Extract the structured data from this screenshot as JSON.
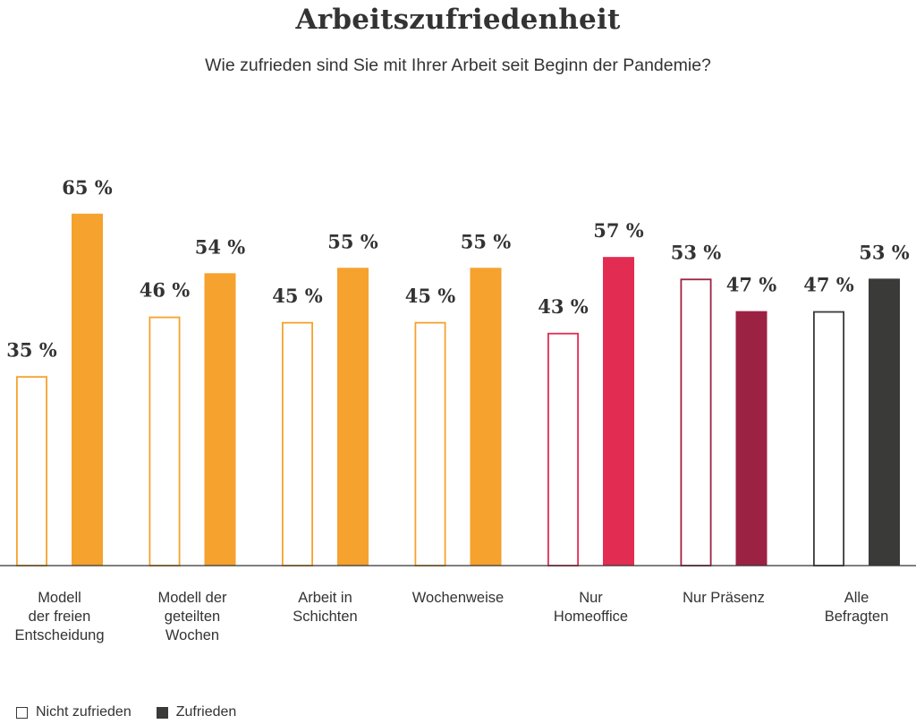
{
  "chart_data": {
    "type": "bar",
    "title": "Arbeitszufriedenheit",
    "subtitle": "Wie zufrieden sind Sie mit Ihrer Arbeit seit Beginn der Pandemie?",
    "unit_suffix": " %",
    "categories": [
      [
        "Modell",
        "der freien",
        "Entscheidung"
      ],
      [
        "Modell der",
        "geteilten",
        "Wochen"
      ],
      [
        "Arbeit in",
        "Schichten"
      ],
      [
        "Wochenweise"
      ],
      [
        "Nur",
        "Homeoffice"
      ],
      [
        "Nur Präsenz"
      ],
      [
        "Alle",
        "Befragten"
      ]
    ],
    "series": [
      {
        "name": "Nicht zufrieden",
        "style": "outline",
        "values": [
          35,
          46,
          45,
          45,
          43,
          53,
          47
        ]
      },
      {
        "name": "Zufrieden",
        "style": "filled",
        "values": [
          65,
          54,
          55,
          55,
          57,
          47,
          53
        ]
      }
    ],
    "group_colors": [
      "#f5a22e",
      "#f5a22e",
      "#f5a22e",
      "#f5a22e",
      "#e32c52",
      "#9c2244",
      "#3a3a38"
    ],
    "ylim": [
      0,
      100
    ],
    "grid": false,
    "legend_position": "bottom-left"
  },
  "legend": {
    "not_satisfied": "Nicht zufrieden",
    "satisfied": "Zufrieden"
  }
}
